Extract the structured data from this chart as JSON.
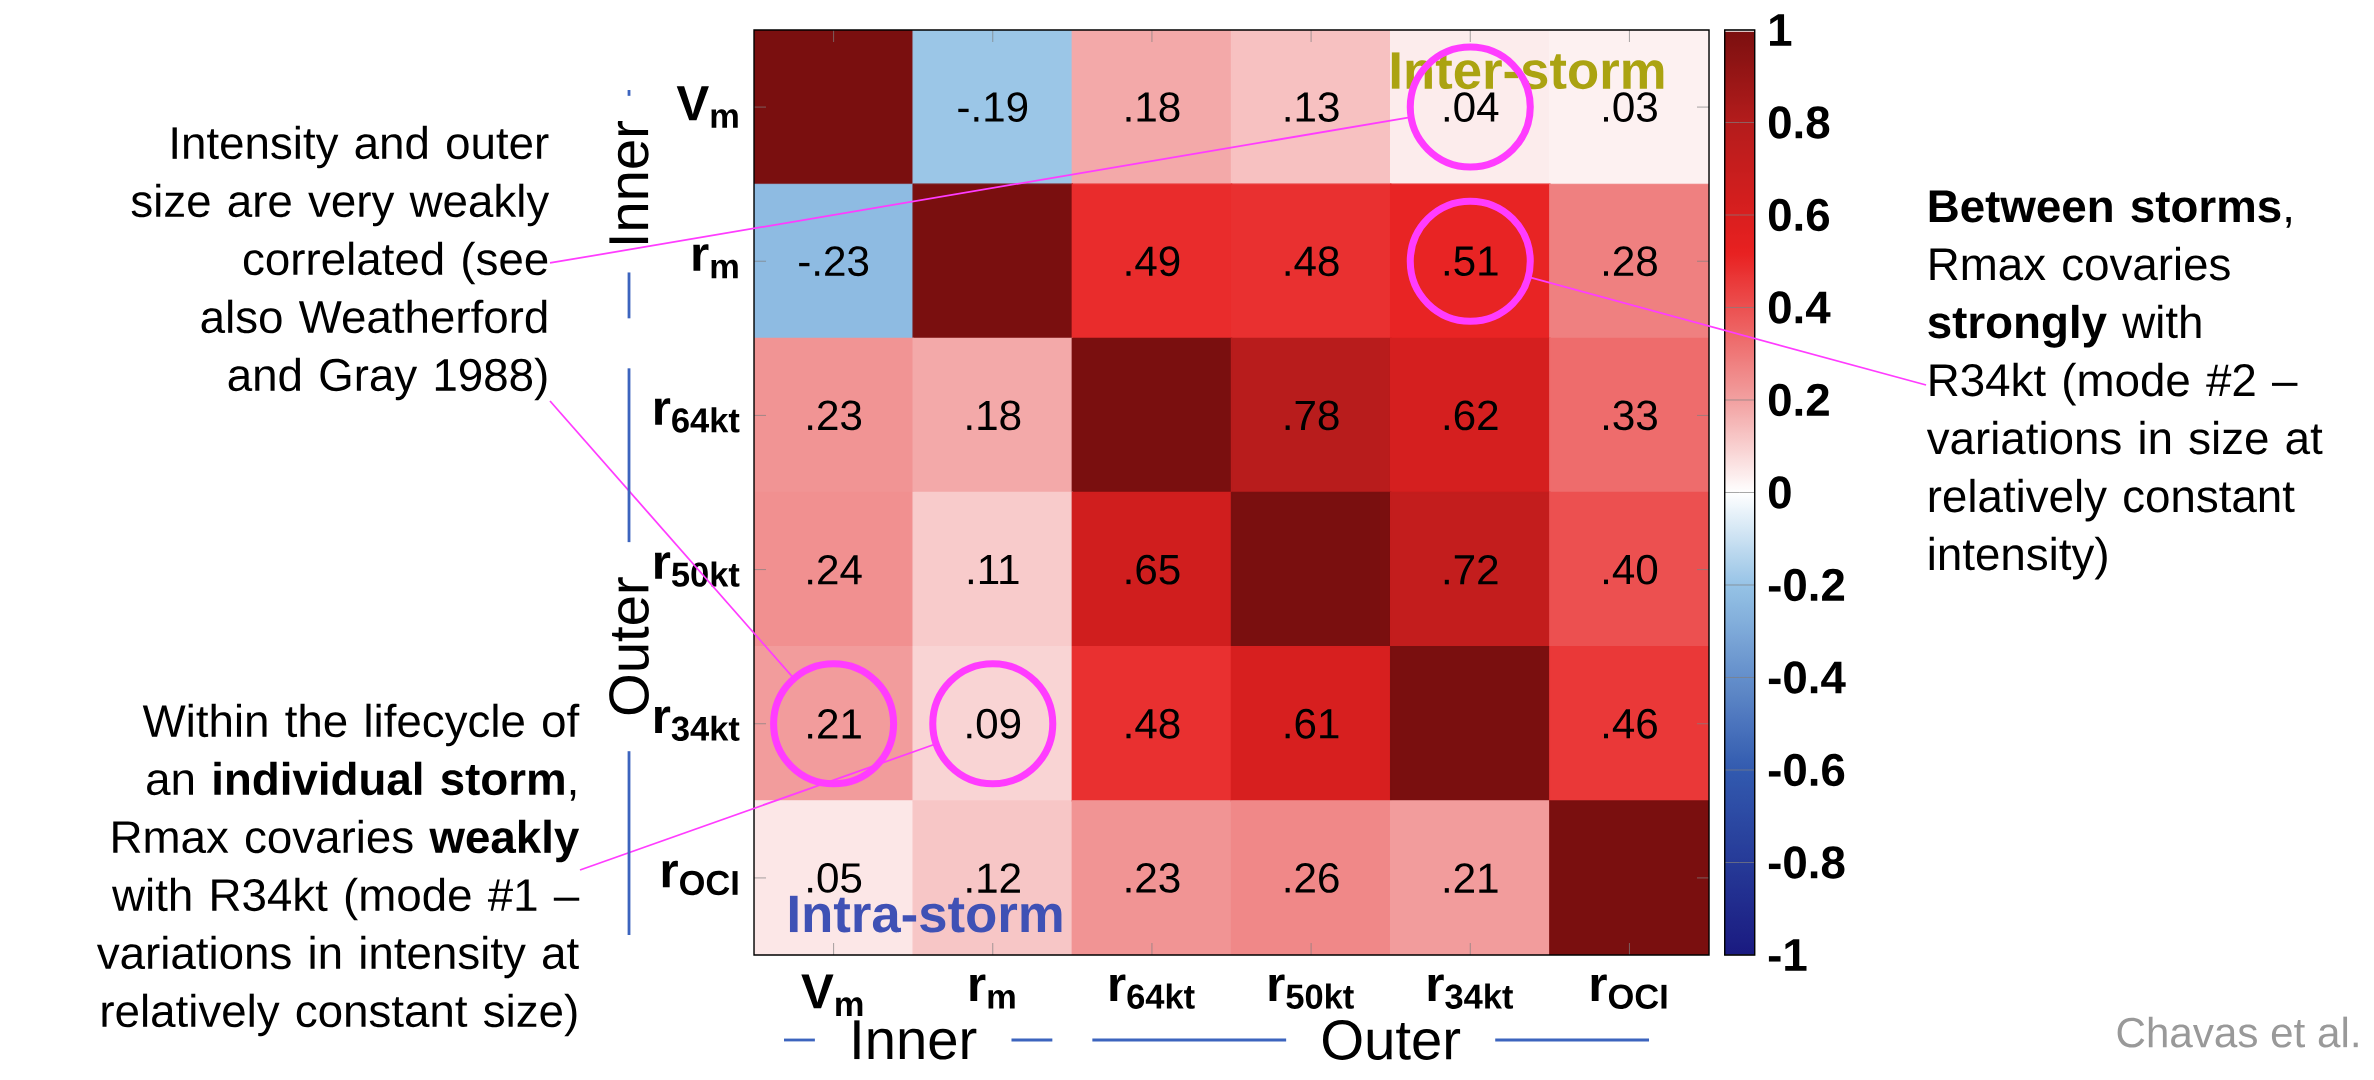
{
  "chart_data": {
    "type": "heatmap",
    "categories": [
      "V$_{m}$",
      "r$_{m}$",
      "r$_{64kt}$",
      "r$_{50kt}$",
      "r$_{34kt}$",
      "r$_{OCI}$"
    ],
    "y_categories": [
      "V$_{m}$",
      "r$_{m}$",
      "r$_{64kt}$",
      "r$_{50kt}$",
      "r$_{34kt}$",
      "r$_{OCI}$"
    ],
    "cells": [
      [
        1,
        -0.19,
        0.18,
        0.13,
        0.04,
        0.03
      ],
      [
        -0.23,
        1,
        0.49,
        0.48,
        0.51,
        0.28
      ],
      [
        0.23,
        0.18,
        1,
        0.78,
        0.62,
        0.33
      ],
      [
        0.24,
        0.11,
        0.65,
        1,
        0.72,
        0.4
      ],
      [
        0.21,
        0.09,
        0.48,
        0.61,
        1,
        0.46
      ],
      [
        0.05,
        0.12,
        0.23,
        0.26,
        0.21,
        1
      ]
    ],
    "cell_labels": [
      [
        null,
        "-.19",
        ".18",
        ".13",
        ".04",
        ".03"
      ],
      [
        "-.23",
        null,
        ".49",
        ".48",
        ".51",
        ".28"
      ],
      [
        ".23",
        ".18",
        null,
        ".78",
        ".62",
        ".33"
      ],
      [
        ".24",
        ".11",
        ".65",
        null,
        ".72",
        ".40"
      ],
      [
        ".21",
        ".09",
        ".48",
        ".61",
        null,
        ".46"
      ],
      [
        ".05",
        ".12",
        ".23",
        ".26",
        ".21",
        null
      ]
    ],
    "clim": [
      -1,
      1
    ],
    "cticks": [
      -1,
      -0.8,
      -0.6,
      -0.4,
      -0.2,
      0,
      0.2,
      0.4,
      0.6,
      0.8,
      1
    ],
    "annotations": [
      "Inter-storm",
      "Intra-storm",
      "Intensity and outer size are very weakly correlated (see also Weatherford and Gray 1988)",
      "**Between storms**, Rmax covaries **strongly** with R34kt (mode #2 – variations in size at relatively constant intensity)",
      "Within the lifecycle of an **individual storm**, Rmax covaries **weakly** with R34kt (mode #1 – variations in intensity at relatively constant size)",
      "Inner",
      "Outer",
      "Inner",
      "Outer",
      "Chavas et al."
    ]
  }
}
